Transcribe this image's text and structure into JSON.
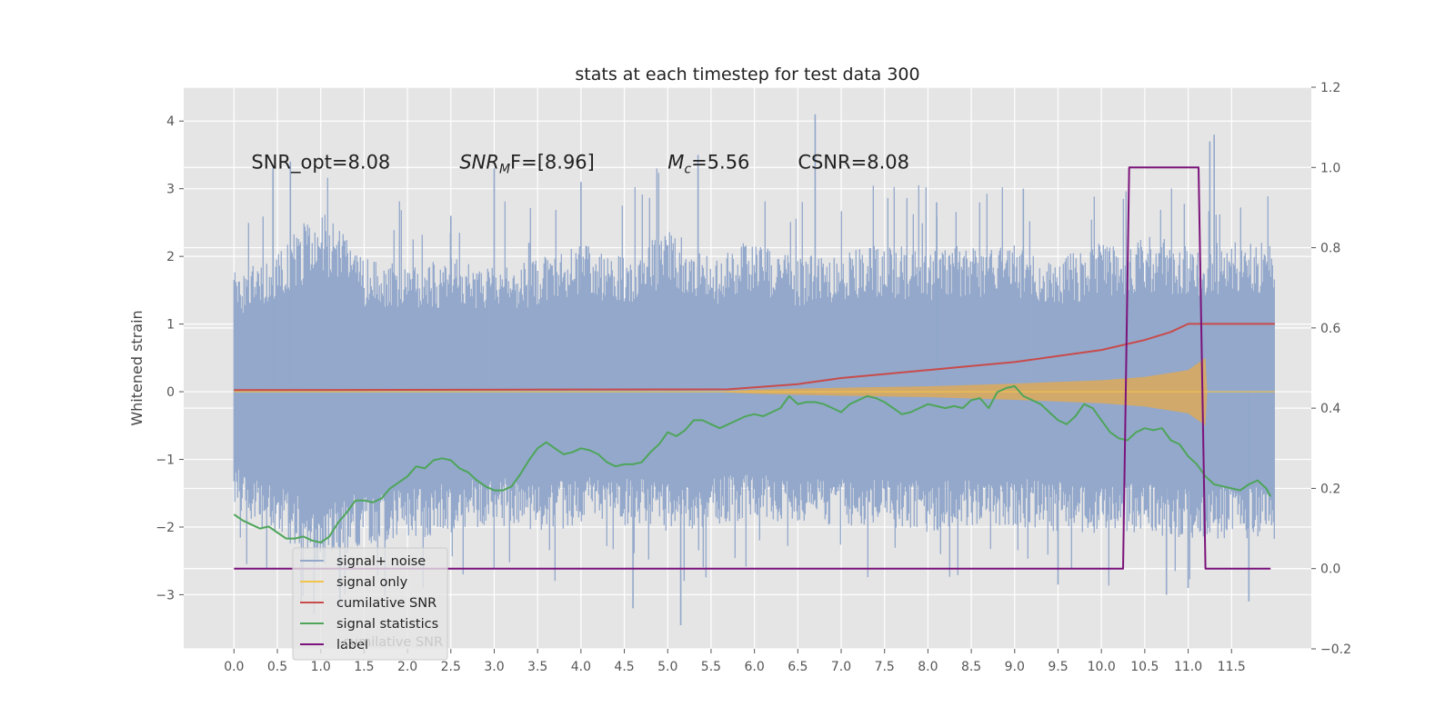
{
  "chart_data": {
    "type": "line",
    "title": "stats at each timestep for test data 300",
    "xlabel": "",
    "ylabel": "Whitened strain",
    "xlim": [
      -0.58,
      12.42
    ],
    "ylim": [
      -3.8,
      4.5
    ],
    "y2lim": [
      -0.2,
      1.2
    ],
    "grid": true,
    "x_ticks": [
      "0.0",
      "0.5",
      "1.0",
      "1.5",
      "2.0",
      "2.5",
      "3.0",
      "3.5",
      "4.0",
      "4.5",
      "5.0",
      "5.5",
      "6.0",
      "6.5",
      "7.0",
      "7.5",
      "8.0",
      "8.5",
      "9.0",
      "9.5",
      "10.0",
      "10.5",
      "11.0",
      "11.5"
    ],
    "y_ticks": [
      "−3",
      "−2",
      "−1",
      "0",
      "1",
      "2",
      "3",
      "4"
    ],
    "y2_ticks": [
      "−0.2",
      "0.0",
      "0.2",
      "0.4",
      "0.6",
      "0.8",
      "1.0",
      "1.2"
    ],
    "annotations": [
      {
        "text": "SNR_opt=8.08",
        "x": 0.2,
        "y": 3.3
      },
      {
        "main": "SNR",
        "sub": "M",
        "rest": "F=[8.96]",
        "x": 2.6,
        "y": 3.3
      },
      {
        "main": "M",
        "sub": "c",
        "rest": "=5.56",
        "x": 5.0,
        "y": 3.3
      },
      {
        "text": "CSNR=8.08",
        "x": 6.5,
        "y": 3.3
      }
    ],
    "legend": {
      "placement": "lower-left",
      "entries": [
        "signal+ noise",
        "signal only",
        "cumilative SNR",
        "signal statistics",
        "label"
      ],
      "ghost_text": "cumilative SNR"
    },
    "colors": {
      "noise": "#93a8cb",
      "signal": "#dca95a",
      "signal_line": "#f2c44d",
      "cumulative": "#c84b4b",
      "stats": "#4ea55a",
      "label": "#7b137b",
      "axes_bg": "#e5e5e5"
    },
    "series": [
      {
        "name": "signal+ noise",
        "axis": "left",
        "x_range": [
          0.0,
          12.0
        ],
        "envelope_upper": [
          1.6,
          1.9,
          2.5,
          1.8,
          1.7,
          1.8,
          1.7,
          1.8,
          2.0,
          1.8,
          2.2,
          1.8,
          2.1,
          1.8,
          1.9,
          2.0,
          1.9,
          2.0,
          2.0,
          1.8,
          2.0,
          2.1,
          2.0,
          2.0,
          2.1
        ],
        "envelope_lower": [
          -1.6,
          -2.0,
          -2.4,
          -2.1,
          -2.0,
          -1.9,
          -1.8,
          -1.9,
          -1.8,
          -1.8,
          -1.9,
          -1.8,
          -1.7,
          -1.8,
          -1.8,
          -1.8,
          -1.9,
          -1.8,
          -1.8,
          -1.9,
          -1.9,
          -1.9,
          -2.0,
          -2.0,
          -2.0
        ],
        "spikes": [
          [
            0.45,
            3.3
          ],
          [
            0.65,
            3.4
          ],
          [
            2.5,
            2.6
          ],
          [
            3.0,
            3.3
          ],
          [
            3.4,
            2.2
          ],
          [
            4.0,
            3.1
          ],
          [
            5.35,
            3.5
          ],
          [
            6.05,
            -0.9
          ],
          [
            6.7,
            4.1
          ],
          [
            8.1,
            2.8
          ],
          [
            9.1,
            3.0
          ],
          [
            11.25,
            3.7
          ],
          [
            11.3,
            3.8
          ],
          [
            4.6,
            -3.2
          ],
          [
            5.15,
            -3.45
          ],
          [
            9.5,
            -2.85
          ],
          [
            10.75,
            -3.0
          ],
          [
            11.0,
            -2.9
          ],
          [
            11.7,
            -3.1
          ]
        ]
      },
      {
        "name": "signal only",
        "axis": "left",
        "x": [
          0.0,
          5.5,
          6.0,
          7.0,
          8.0,
          9.0,
          10.0,
          10.5,
          11.0,
          11.2,
          11.22,
          12.0
        ],
        "amplitude": [
          0.0,
          0.0,
          0.03,
          0.06,
          0.08,
          0.12,
          0.17,
          0.22,
          0.32,
          0.5,
          0.0,
          0.0
        ]
      },
      {
        "name": "cumilative SNR",
        "axis": "right",
        "x": [
          0.0,
          5.7,
          6.5,
          7.0,
          7.5,
          8.0,
          8.5,
          9.0,
          9.5,
          10.0,
          10.5,
          10.8,
          11.0,
          11.15,
          12.0
        ],
        "y": [
          0.445,
          0.447,
          0.46,
          0.475,
          0.485,
          0.495,
          0.505,
          0.515,
          0.53,
          0.545,
          0.57,
          0.59,
          0.61,
          0.61,
          0.61
        ]
      },
      {
        "name": "signal statistics",
        "axis": "right",
        "x": [
          0.0,
          0.1,
          0.2,
          0.3,
          0.4,
          0.5,
          0.6,
          0.7,
          0.8,
          0.9,
          1.0,
          1.1,
          1.2,
          1.3,
          1.4,
          1.5,
          1.6,
          1.7,
          1.8,
          1.9,
          2.0,
          2.1,
          2.2,
          2.3,
          2.4,
          2.5,
          2.6,
          2.7,
          2.8,
          2.9,
          3.0,
          3.1,
          3.2,
          3.3,
          3.4,
          3.5,
          3.6,
          3.7,
          3.8,
          3.9,
          4.0,
          4.1,
          4.2,
          4.3,
          4.4,
          4.5,
          4.6,
          4.7,
          4.8,
          4.9,
          5.0,
          5.1,
          5.2,
          5.3,
          5.4,
          5.5,
          5.6,
          5.7,
          5.8,
          5.9,
          6.0,
          6.1,
          6.2,
          6.3,
          6.4,
          6.5,
          6.6,
          6.7,
          6.8,
          6.9,
          7.0,
          7.1,
          7.2,
          7.3,
          7.4,
          7.5,
          7.6,
          7.7,
          7.8,
          7.9,
          8.0,
          8.1,
          8.2,
          8.3,
          8.4,
          8.5,
          8.6,
          8.7,
          8.8,
          8.9,
          9.0,
          9.1,
          9.2,
          9.3,
          9.4,
          9.5,
          9.6,
          9.7,
          9.8,
          9.9,
          10.0,
          10.1,
          10.2,
          10.3,
          10.4,
          10.5,
          10.6,
          10.7,
          10.8,
          10.9,
          11.0,
          11.1,
          11.2,
          11.3,
          11.4,
          11.5,
          11.6,
          11.7,
          11.8,
          11.9,
          11.95
        ],
        "y": [
          0.135,
          0.12,
          0.11,
          0.1,
          0.105,
          0.09,
          0.075,
          0.075,
          0.08,
          0.07,
          0.065,
          0.08,
          0.115,
          0.14,
          0.17,
          0.17,
          0.165,
          0.175,
          0.2,
          0.215,
          0.23,
          0.255,
          0.25,
          0.27,
          0.275,
          0.27,
          0.25,
          0.24,
          0.22,
          0.205,
          0.195,
          0.195,
          0.205,
          0.235,
          0.27,
          0.3,
          0.315,
          0.3,
          0.285,
          0.29,
          0.3,
          0.295,
          0.285,
          0.265,
          0.255,
          0.26,
          0.26,
          0.265,
          0.29,
          0.31,
          0.34,
          0.33,
          0.345,
          0.37,
          0.37,
          0.36,
          0.35,
          0.36,
          0.37,
          0.38,
          0.385,
          0.38,
          0.39,
          0.4,
          0.43,
          0.41,
          0.415,
          0.415,
          0.41,
          0.4,
          0.39,
          0.41,
          0.42,
          0.43,
          0.425,
          0.415,
          0.4,
          0.385,
          0.39,
          0.4,
          0.41,
          0.405,
          0.4,
          0.405,
          0.4,
          0.42,
          0.425,
          0.4,
          0.44,
          0.45,
          0.455,
          0.43,
          0.42,
          0.41,
          0.39,
          0.37,
          0.36,
          0.38,
          0.41,
          0.4,
          0.37,
          0.34,
          0.325,
          0.32,
          0.34,
          0.35,
          0.345,
          0.35,
          0.32,
          0.31,
          0.28,
          0.26,
          0.23,
          0.21,
          0.205,
          0.2,
          0.195,
          0.21,
          0.22,
          0.2,
          0.18
        ]
      },
      {
        "name": "label",
        "axis": "right",
        "x": [
          0.0,
          10.25,
          10.32,
          11.12,
          11.2,
          11.95
        ],
        "y": [
          0.0,
          0.0,
          1.0,
          1.0,
          0.0,
          0.0
        ]
      }
    ]
  }
}
